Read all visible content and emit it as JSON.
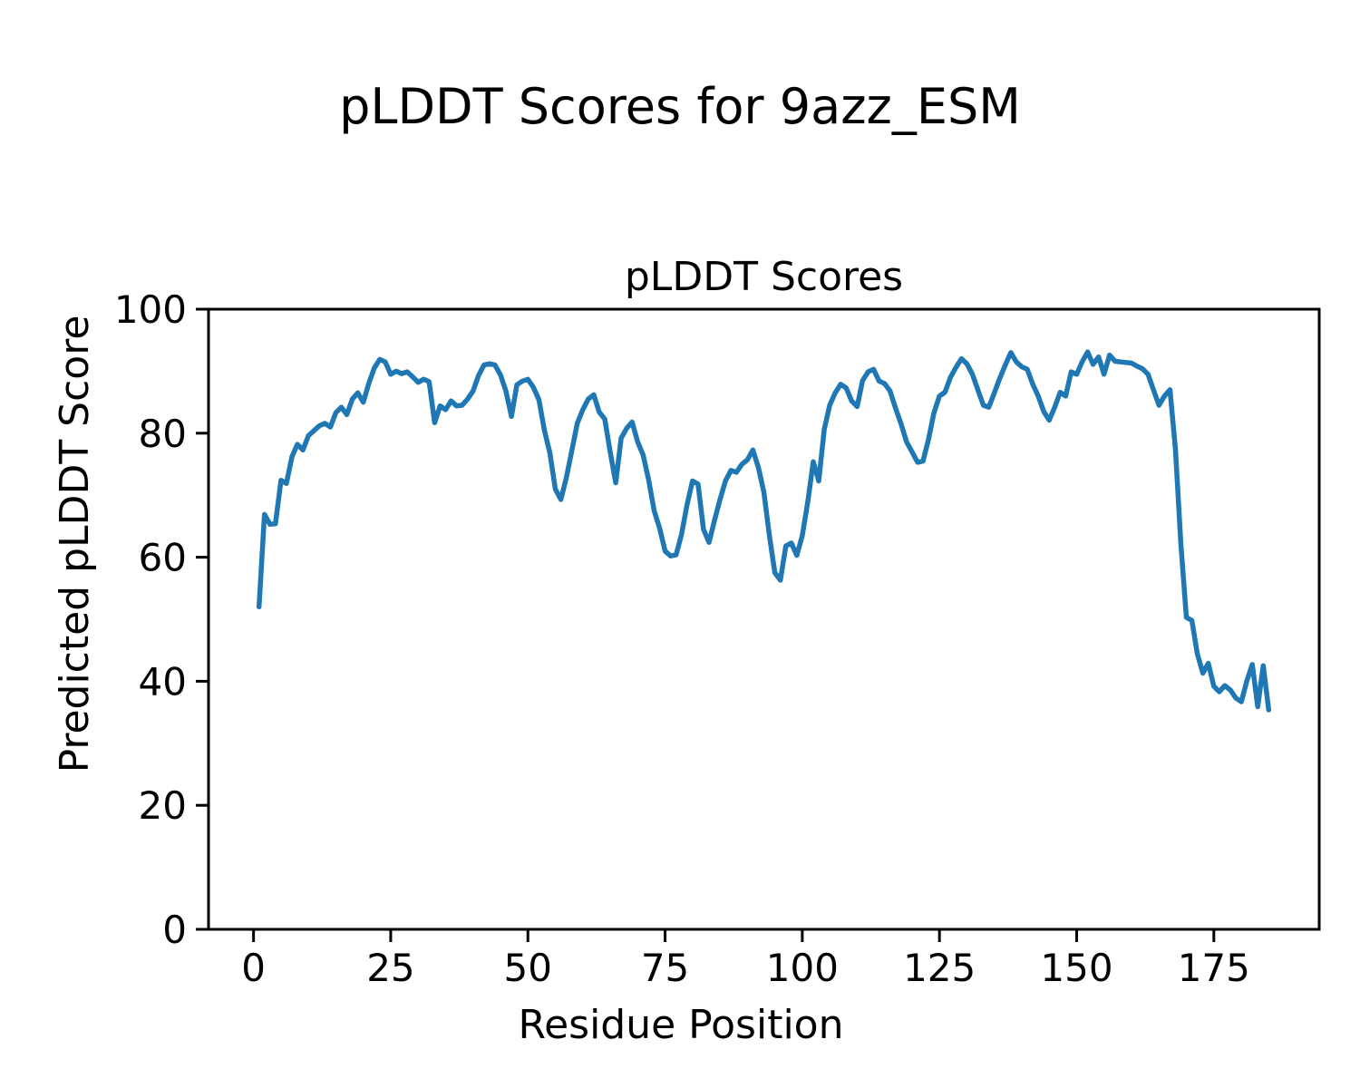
{
  "figure": {
    "suptitle": "pLDDT Scores for 9azz_ESM",
    "axes_title": "pLDDT Scores",
    "xlabel": "Residue Position",
    "ylabel": "Predicted pLDDT Score"
  },
  "colors": {
    "line": "#1f77b4",
    "axis": "#000000",
    "text": "#000000",
    "background": "#ffffff"
  },
  "chart_data": {
    "type": "line",
    "title": "pLDDT Scores",
    "suptitle": "pLDDT Scores for 9azz_ESM",
    "xlabel": "Residue Position",
    "ylabel": "Predicted pLDDT Score",
    "xlim": [
      -8.2,
      194.2
    ],
    "ylim": [
      0,
      100
    ],
    "xticks": [
      0,
      25,
      50,
      75,
      100,
      125,
      150,
      175
    ],
    "yticks": [
      0,
      20,
      40,
      60,
      80,
      100
    ],
    "grid": false,
    "legend": null,
    "series": [
      {
        "name": "pLDDT",
        "color": "#1f77b4",
        "line_width": 5.5,
        "x_start": 1,
        "x_step": 1,
        "y": [
          52.0,
          66.9,
          65.3,
          65.4,
          72.4,
          71.9,
          76.2,
          78.2,
          77.3,
          79.6,
          80.4,
          81.2,
          81.6,
          81.0,
          83.3,
          84.2,
          83.0,
          85.5,
          86.5,
          85.0,
          88.0,
          90.5,
          91.9,
          91.5,
          89.5,
          90.0,
          89.6,
          89.9,
          89.1,
          88.2,
          88.7,
          88.3,
          81.7,
          84.4,
          83.8,
          85.2,
          84.4,
          84.5,
          85.5,
          86.8,
          89.3,
          91.0,
          91.2,
          91.0,
          89.4,
          86.8,
          82.7,
          87.8,
          88.4,
          88.7,
          87.4,
          85.4,
          80.5,
          76.8,
          71.0,
          69.3,
          72.8,
          77.2,
          81.6,
          83.8,
          85.5,
          86.2,
          83.4,
          82.3,
          77.0,
          72.0,
          79.2,
          80.8,
          81.8,
          78.6,
          76.5,
          72.5,
          67.5,
          64.7,
          61.0,
          60.2,
          60.4,
          63.7,
          68.5,
          72.3,
          71.8,
          64.5,
          62.4,
          65.9,
          69.3,
          72.3,
          74.0,
          73.7,
          75.0,
          75.7,
          77.3,
          74.5,
          70.5,
          63.5,
          57.5,
          56.3,
          61.8,
          62.3,
          60.3,
          63.5,
          68.9,
          75.4,
          72.3,
          80.6,
          84.5,
          86.5,
          87.9,
          87.3,
          85.2,
          84.3,
          88.5,
          89.9,
          90.3,
          88.4,
          88.0,
          86.8,
          84.0,
          81.5,
          78.6,
          77.0,
          75.3,
          75.5,
          79.0,
          83.3,
          86.0,
          86.6,
          89.0,
          90.6,
          92.0,
          91.2,
          89.5,
          87.0,
          84.5,
          84.2,
          86.5,
          88.9,
          91.0,
          93.0,
          91.5,
          90.7,
          90.3,
          87.9,
          86.0,
          83.5,
          82.1,
          84.2,
          86.6,
          86.0,
          89.9,
          89.5,
          91.5,
          93.1,
          91.1,
          92.3,
          89.5,
          92.6,
          91.6,
          91.5,
          91.4,
          91.3,
          90.8,
          90.4,
          89.5,
          87.0,
          84.5,
          86.0,
          87.0,
          77.5,
          62.0,
          50.3,
          49.8,
          44.4,
          41.3,
          42.9,
          39.2,
          38.3,
          39.3,
          38.6,
          37.3,
          36.7,
          40.0,
          42.7,
          35.9,
          42.5,
          35.4
        ]
      }
    ]
  }
}
